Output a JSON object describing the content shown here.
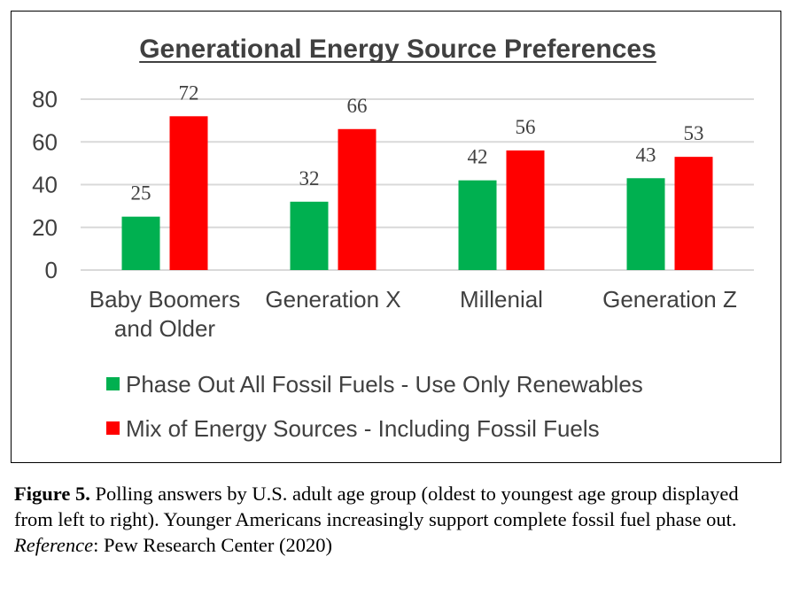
{
  "chart_data": {
    "type": "bar",
    "title": "Generational Energy Source Preferences",
    "categories": [
      [
        "Baby Boomers",
        "and Older"
      ],
      [
        "Generation X"
      ],
      [
        "Millenial"
      ],
      [
        "Generation Z"
      ]
    ],
    "series": [
      {
        "name": "Phase Out All Fossil Fuels - Use Only Renewables",
        "color": "#00B050",
        "values": [
          25,
          32,
          42,
          43
        ]
      },
      {
        "name": "Mix of Energy Sources - Including Fossil Fuels",
        "color": "#FF0000",
        "values": [
          72,
          66,
          56,
          53
        ]
      }
    ],
    "ylim": [
      0,
      80
    ],
    "yticks": [
      0,
      20,
      40,
      60,
      80
    ],
    "grid": true,
    "legend_position": "bottom"
  },
  "caption": {
    "figure_label": "Figure 5.",
    "figure_text": " Polling answers by U.S. adult age group (oldest to youngest age group displayed from left to right). Younger Americans increasingly support complete fossil fuel phase out.",
    "reference_label": "Reference",
    "reference_text": ": Pew Research Center (2020)"
  }
}
